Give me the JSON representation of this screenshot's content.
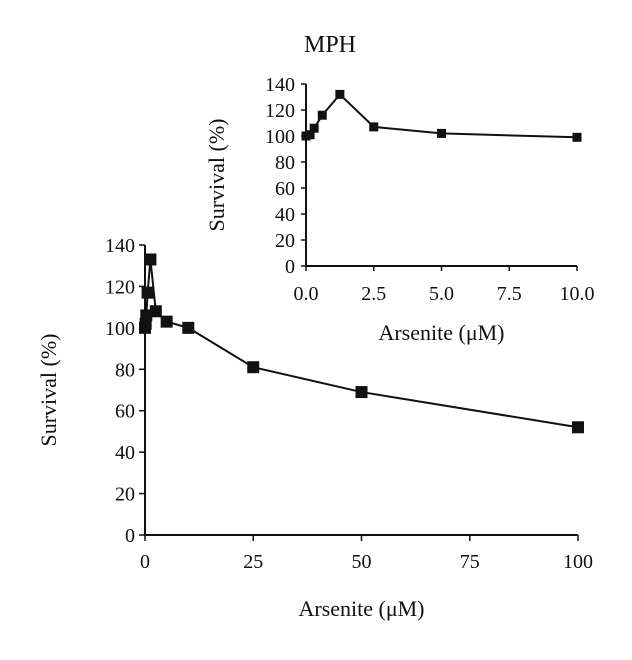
{
  "chart_data": [
    {
      "id": "main",
      "type": "line",
      "title": "",
      "xlabel": "Arsenite (μM)",
      "ylabel": "Survival (%)",
      "xlim": [
        0,
        100
      ],
      "ylim": [
        0,
        140
      ],
      "xticks": [
        0,
        25,
        50,
        75,
        100
      ],
      "yticks": [
        0,
        20,
        40,
        60,
        80,
        100,
        120,
        140
      ],
      "grid": false,
      "series": [
        {
          "x": [
            0,
            0.15,
            0.3,
            0.6,
            1.25,
            2.5,
            5,
            10,
            25,
            50,
            100
          ],
          "y": [
            100,
            102,
            106,
            117,
            133,
            108,
            103,
            100,
            81,
            69,
            52
          ]
        }
      ]
    },
    {
      "id": "inset",
      "type": "line",
      "title": "MPH",
      "xlabel": "Arsenite (μM)",
      "ylabel": "Survival (%)",
      "xlim": [
        0,
        10
      ],
      "ylim": [
        0,
        140
      ],
      "xticks": [
        "0.0",
        "2.5",
        "5.0",
        "7.5",
        "10.0"
      ],
      "yticks": [
        0,
        20,
        40,
        60,
        80,
        100,
        120,
        140
      ],
      "grid": false,
      "series": [
        {
          "x": [
            0,
            0.15,
            0.3,
            0.6,
            1.25,
            2.5,
            5,
            10
          ],
          "y": [
            100,
            101,
            106,
            116,
            132,
            107,
            102,
            99
          ]
        }
      ]
    }
  ]
}
